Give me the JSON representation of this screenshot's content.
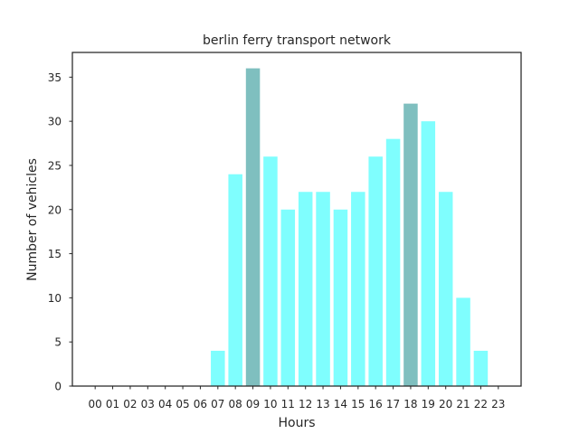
{
  "chart_data": {
    "type": "bar",
    "title": "berlin ferry transport network",
    "xlabel": "Hours",
    "ylabel": "Number of vehicles",
    "categories": [
      "00",
      "01",
      "02",
      "03",
      "04",
      "05",
      "06",
      "07",
      "08",
      "09",
      "10",
      "11",
      "12",
      "13",
      "14",
      "15",
      "16",
      "17",
      "18",
      "19",
      "20",
      "21",
      "22",
      "23"
    ],
    "values": [
      0,
      0,
      0,
      0,
      0,
      0,
      0,
      4,
      24,
      36,
      26,
      20,
      22,
      22,
      20,
      22,
      26,
      28,
      32,
      30,
      22,
      10,
      4,
      0
    ],
    "highlight_categories": [
      "09",
      "18"
    ],
    "ylim": [
      0,
      37.8
    ],
    "yticks": [
      0,
      5,
      10,
      15,
      20,
      25,
      30,
      35
    ],
    "grid": false,
    "colors": {
      "bar": "#7ffefe",
      "highlight": "#7fbfbf",
      "axis": "#262626"
    }
  }
}
